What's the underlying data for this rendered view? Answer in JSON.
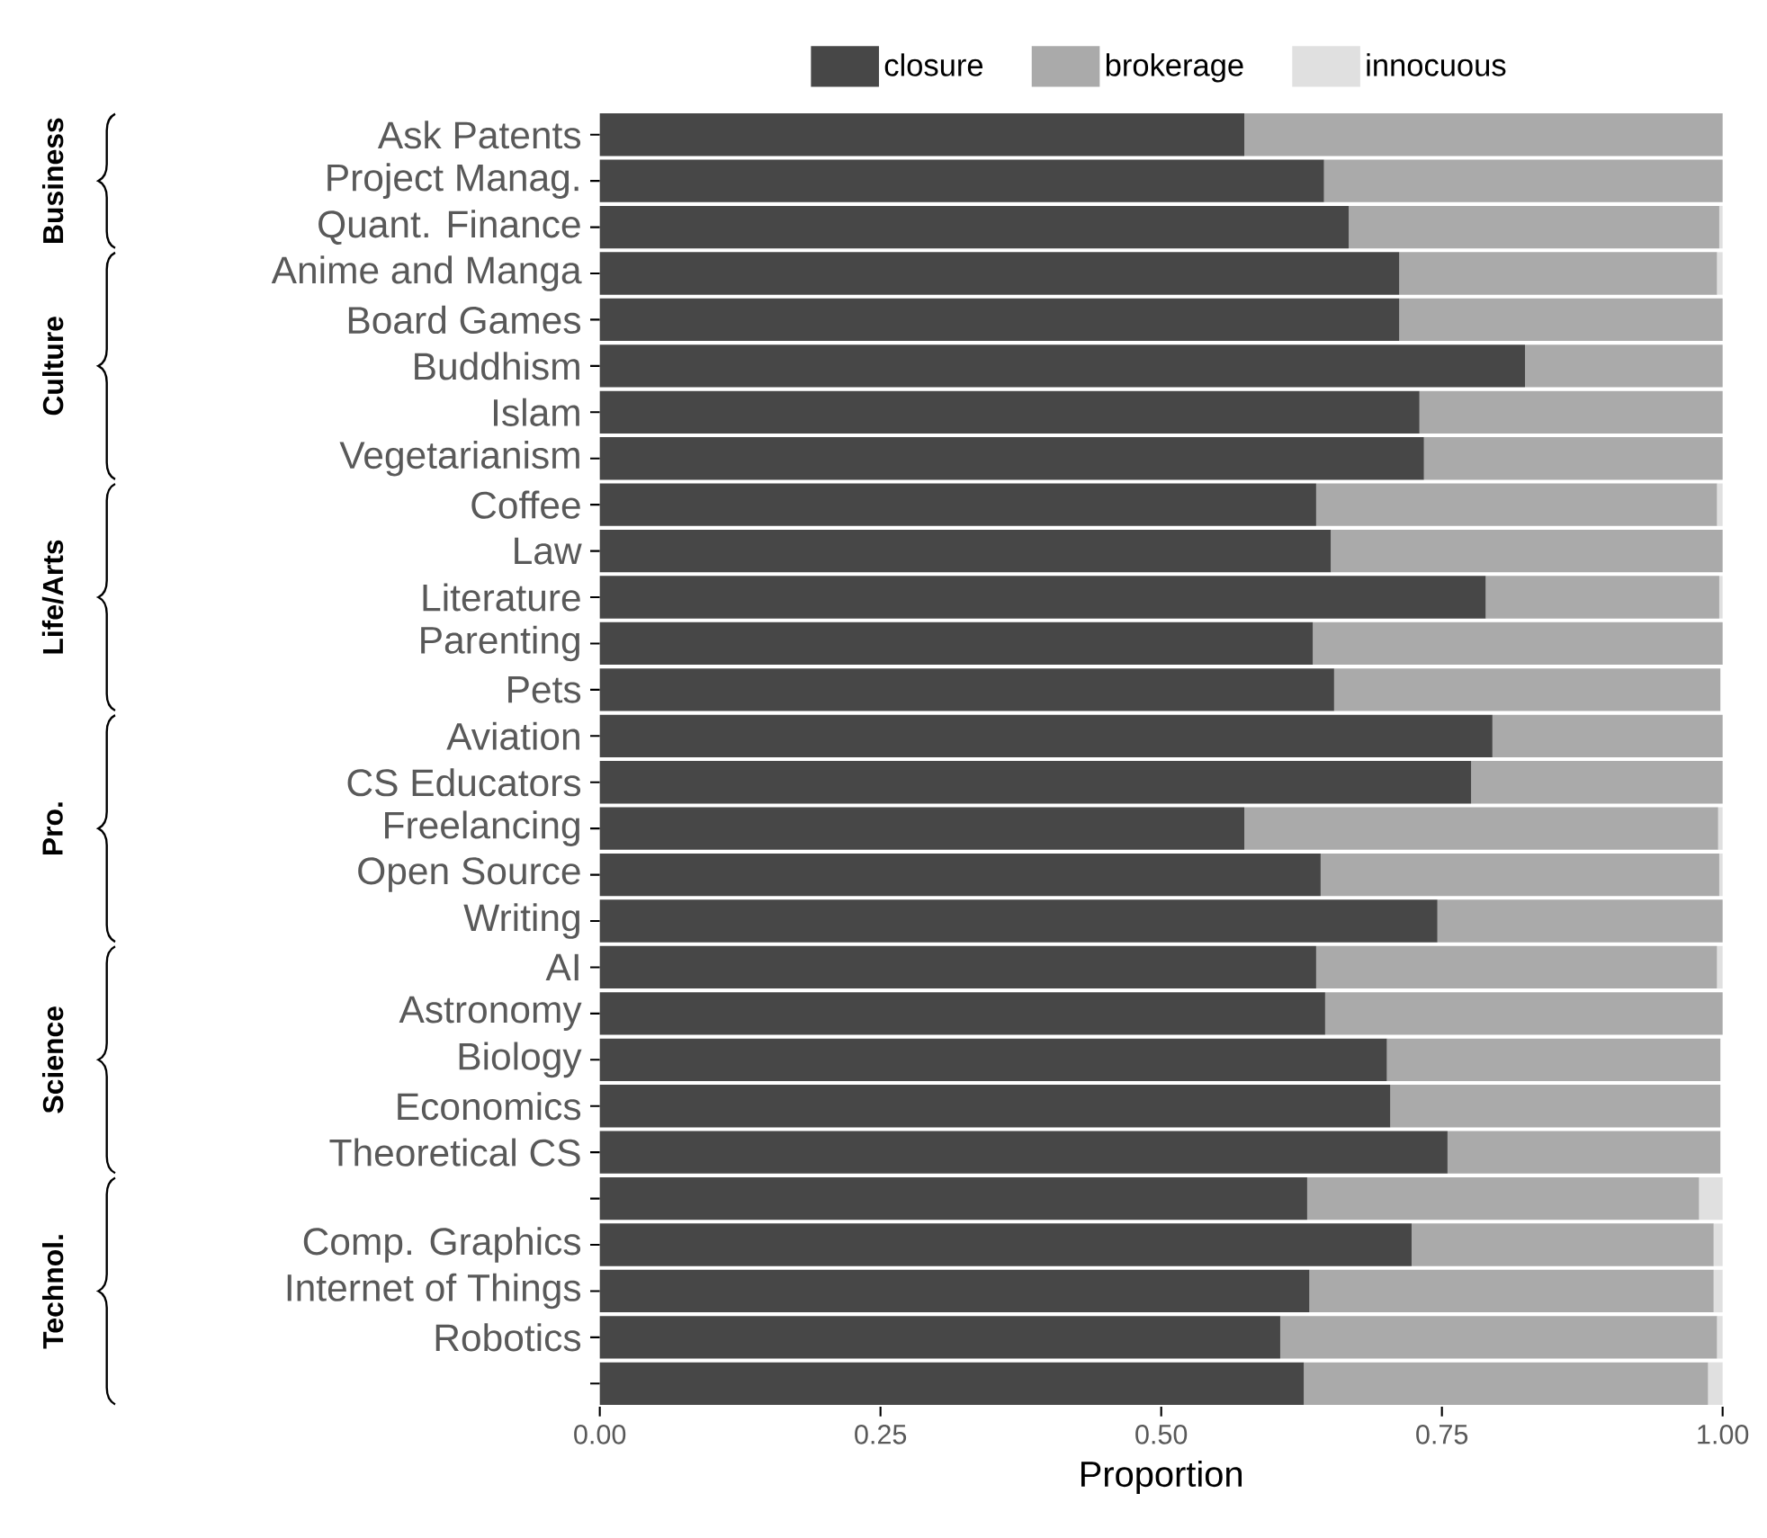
{
  "chart_data": {
    "type": "bar",
    "orientation": "horizontal",
    "stacked": true,
    "categories": [
      "Ask Patents",
      "Project Manag.",
      "Quant. Finance",
      "Anime and Manga",
      "Board Games",
      "Buddhism",
      "Islam",
      "Vegetarianism",
      "Coffee",
      "Law",
      "Literature",
      "Parenting",
      "Pets",
      "Aviation",
      "CS Educators",
      "Freelancing",
      "Open Source",
      "Writing",
      "AI",
      "Astronomy",
      "Biology",
      "Economics",
      "Theoretical CS",
      null,
      "Comp. Graphics",
      "Internet of Things",
      "Robotics",
      null
    ],
    "series": [
      {
        "name": "closure",
        "color": "#474747",
        "values": [
          0.574,
          0.645,
          0.667,
          0.712,
          0.712,
          0.824,
          0.73,
          0.734,
          0.638,
          0.651,
          0.789,
          0.635,
          0.654,
          0.795,
          0.776,
          0.574,
          0.642,
          0.746,
          0.638,
          0.646,
          0.701,
          0.704,
          0.755,
          0.63,
          0.723,
          0.632,
          0.606,
          0.627
        ]
      },
      {
        "name": "brokerage",
        "color": "#aaaaaa",
        "values": [
          0.426,
          0.355,
          0.33,
          0.283,
          0.288,
          0.176,
          0.27,
          0.266,
          0.357,
          0.349,
          0.208,
          0.365,
          0.344,
          0.205,
          0.224,
          0.422,
          0.355,
          0.254,
          0.357,
          0.354,
          0.297,
          0.294,
          0.243,
          0.349,
          0.269,
          0.36,
          0.389,
          0.36
        ]
      },
      {
        "name": "innocuous",
        "color": "#e0e0e0",
        "values": [
          0,
          0,
          0.003,
          0.005,
          0,
          0,
          0,
          0,
          0.005,
          0,
          0.003,
          0,
          0,
          0,
          0,
          0.004,
          0.003,
          0,
          0.005,
          0,
          0,
          0,
          0,
          0.021,
          0.008,
          0.008,
          0.005,
          0.013
        ]
      }
    ],
    "xlim": [
      0,
      1
    ],
    "xticks": [
      {
        "value": 0,
        "label": "0.00"
      },
      {
        "value": 0.25,
        "label": "0.25"
      },
      {
        "value": 0.5,
        "label": "0.50"
      },
      {
        "value": 0.75,
        "label": "0.75"
      },
      {
        "value": 1,
        "label": "1.00"
      }
    ],
    "xlabel": "Proportion",
    "legend": "top",
    "annotations": [
      "Business",
      "Culture",
      "Life/Arts",
      "Pro.",
      "Science",
      "Technol."
    ]
  }
}
